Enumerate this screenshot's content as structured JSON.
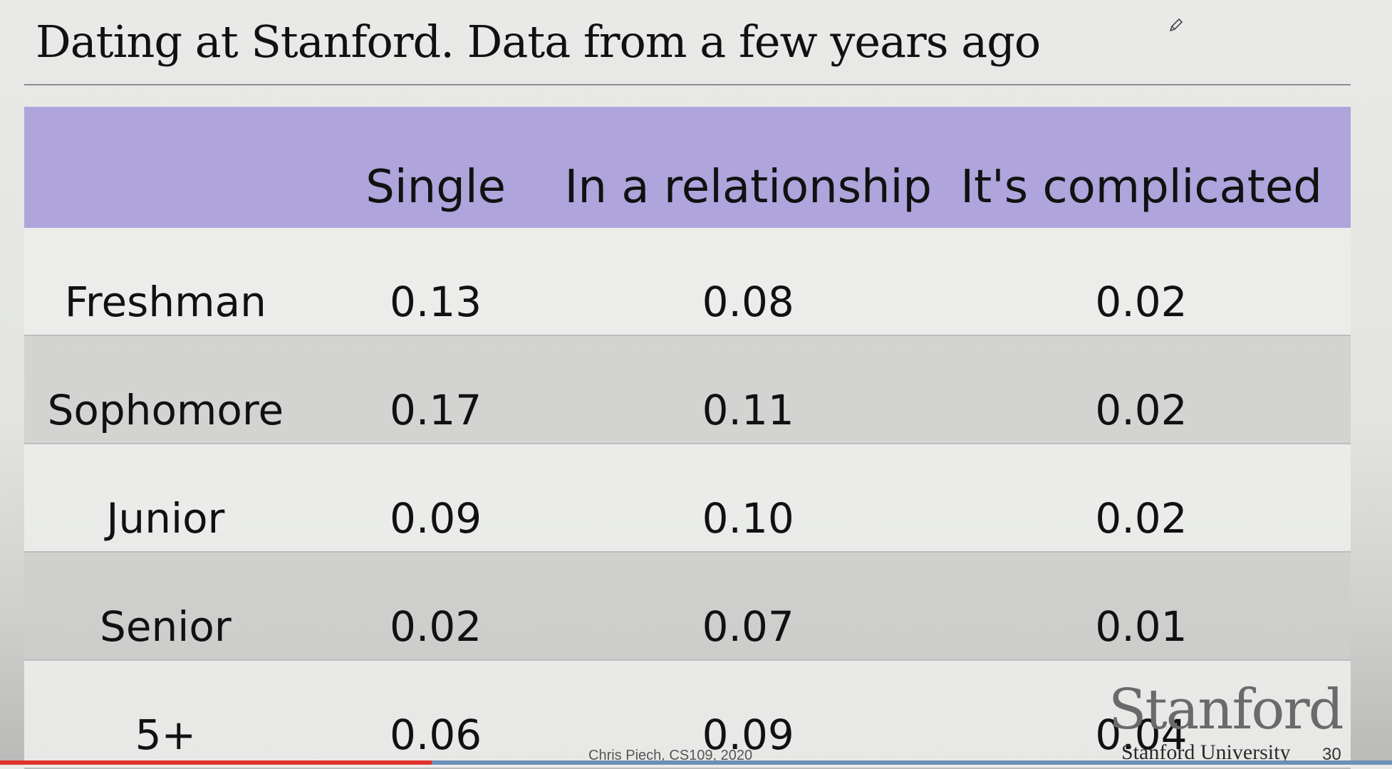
{
  "slide": {
    "title": "Dating at Stanford. Data from a few years ago",
    "footer_credit": "Chris Piech, CS109, 2020",
    "logo_wordmark": "Stanford",
    "logo_subtitle": "Stanford University",
    "slide_number": "30",
    "progress_fraction": 0.31,
    "colors": {
      "header_band": "#afa4dc",
      "progress_fill": "#e0322c",
      "progress_track": "#6a8fb8"
    }
  },
  "table": {
    "columns": [
      "",
      "Single",
      "In a relationship",
      "It's complicated"
    ],
    "rows": [
      {
        "label": "Freshman",
        "cells": [
          "0.13",
          "0.08",
          "0.02"
        ]
      },
      {
        "label": "Sophomore",
        "cells": [
          "0.17",
          "0.11",
          "0.02"
        ]
      },
      {
        "label": "Junior",
        "cells": [
          "0.09",
          "0.10",
          "0.02"
        ]
      },
      {
        "label": "Senior",
        "cells": [
          "0.02",
          "0.07",
          "0.01"
        ]
      },
      {
        "label": "5+",
        "cells": [
          "0.06",
          "0.09",
          "0.04"
        ]
      }
    ]
  },
  "icons": {
    "annotation_tool": "pencil-icon"
  }
}
